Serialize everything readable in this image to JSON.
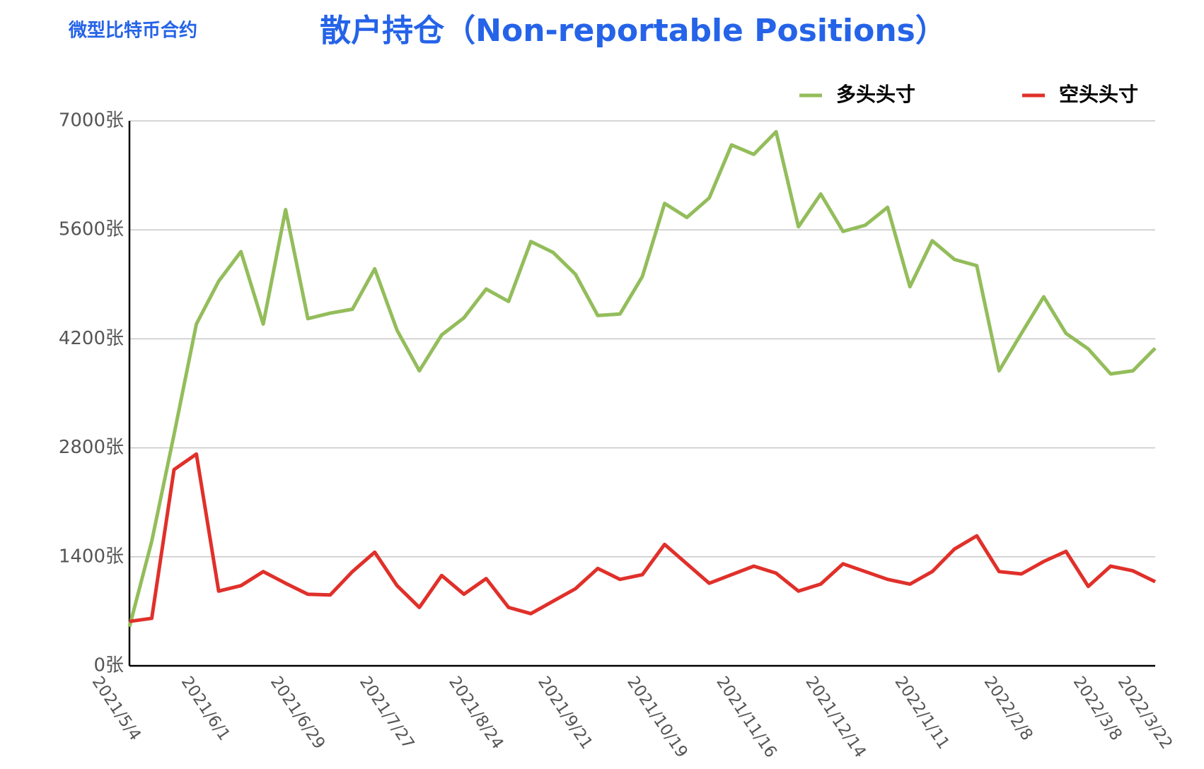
{
  "chart_data": {
    "type": "line",
    "subtitle": "微型比特币合约",
    "title": "散户持仓（Non-reportable Positions）",
    "categories": [
      "2021/5/4",
      null,
      null,
      null,
      "2021/6/1",
      null,
      null,
      null,
      "2021/6/29",
      null,
      null,
      null,
      "2021/7/27",
      null,
      null,
      null,
      "2021/8/24",
      null,
      null,
      null,
      "2021/9/21",
      null,
      null,
      null,
      "2021/10/19",
      null,
      null,
      null,
      "2021/11/16",
      null,
      null,
      null,
      "2021/12/14",
      null,
      null,
      null,
      "2022/1/11",
      null,
      null,
      null,
      "2022/2/8",
      null,
      null,
      null,
      "2022/3/8",
      null,
      "2022/3/22"
    ],
    "series": [
      {
        "name": "多头头寸",
        "color": "#93bd5b",
        "values": [
          500,
          1600,
          2970,
          4390,
          4940,
          5320,
          4390,
          5860,
          4460,
          4530,
          4580,
          5100,
          4310,
          3790,
          4250,
          4470,
          4840,
          4680,
          5450,
          5310,
          5030,
          4500,
          4520,
          5000,
          5940,
          5760,
          6010,
          6690,
          6570,
          6860,
          5640,
          6060,
          5580,
          5660,
          5890,
          4870,
          5460,
          5220,
          5140,
          3790,
          4270,
          4740,
          4270,
          4070,
          3750,
          3790,
          4080
        ]
      },
      {
        "name": "空头头寸",
        "color": "#e0302a",
        "values": [
          570,
          610,
          2520,
          2720,
          960,
          1030,
          1210,
          1060,
          920,
          910,
          1210,
          1460,
          1030,
          750,
          1160,
          920,
          1120,
          750,
          670,
          830,
          990,
          1250,
          1110,
          1170,
          1560,
          1310,
          1060,
          1170,
          1280,
          1190,
          960,
          1050,
          1310,
          1210,
          1110,
          1050,
          1210,
          1500,
          1670,
          1210,
          1180,
          1340,
          1470,
          1020,
          1280,
          1220,
          1080
        ]
      }
    ],
    "ylim": [
      0,
      7000
    ],
    "yticks": [
      {
        "value": 0,
        "label": "0张"
      },
      {
        "value": 1400,
        "label": "1400张"
      },
      {
        "value": 2800,
        "label": "2800张"
      },
      {
        "value": 4200,
        "label": "4200张"
      },
      {
        "value": 5600,
        "label": "5600张"
      },
      {
        "value": 7000,
        "label": "7000张"
      }
    ],
    "grid": true,
    "legend": "top-right"
  }
}
